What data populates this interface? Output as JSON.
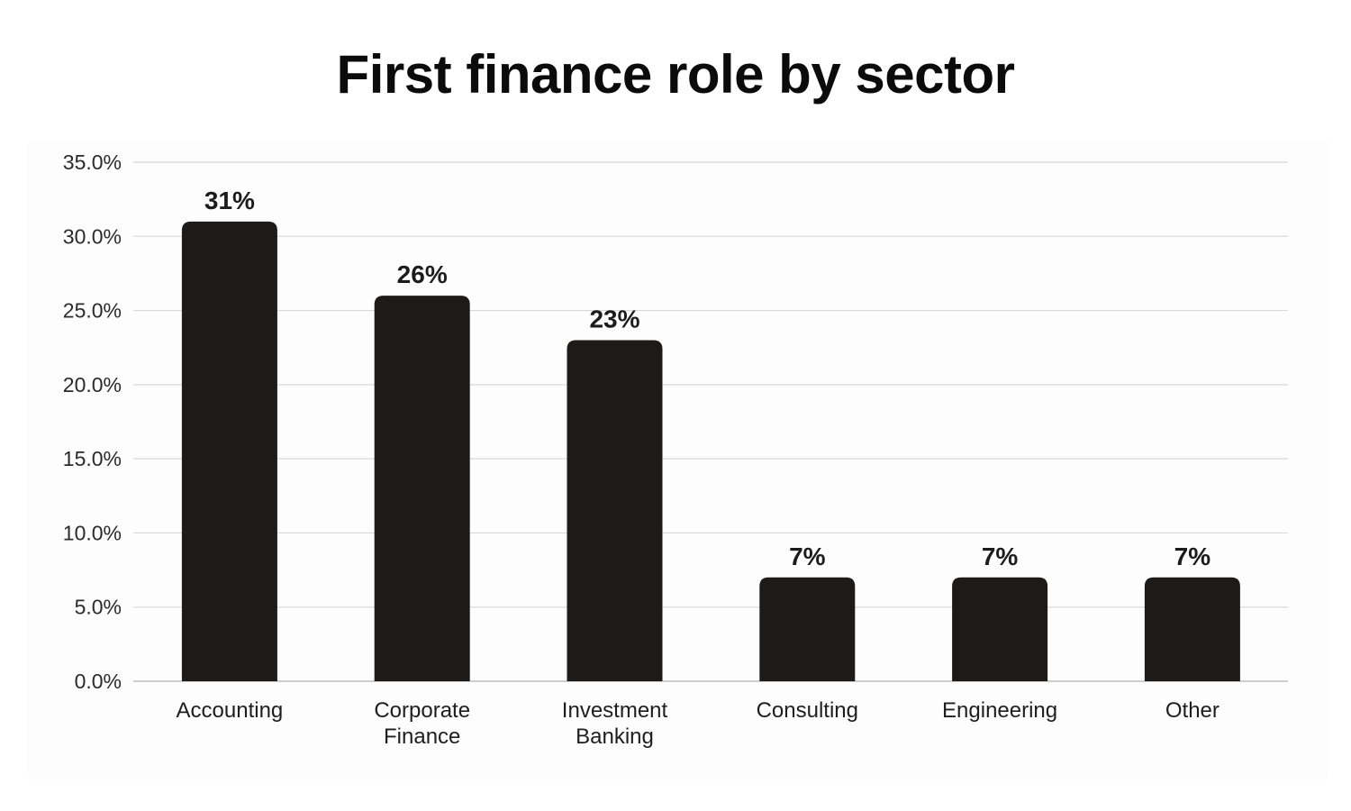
{
  "chart_data": {
    "type": "bar",
    "title": "First finance role by sector",
    "xlabel": "",
    "ylabel": "",
    "categories": [
      [
        "Accounting"
      ],
      [
        "Corporate",
        "Finance"
      ],
      [
        "Investment",
        "Banking"
      ],
      [
        "Consulting"
      ],
      [
        "Engineering"
      ],
      [
        "Other"
      ]
    ],
    "values": [
      31,
      26,
      23,
      7,
      7,
      7
    ],
    "data_labels": [
      "31%",
      "26%",
      "23%",
      "7%",
      "7%",
      "7%"
    ],
    "ylim": [
      0,
      35
    ],
    "yticks": [
      0,
      5,
      10,
      15,
      20,
      25,
      30,
      35
    ],
    "ytick_labels": [
      "0.0%",
      "5.0%",
      "10.0%",
      "15.0%",
      "20.0%",
      "25.0%",
      "30.0%",
      "35.0%"
    ],
    "grid": true,
    "legend": "none",
    "colors": {
      "bar": "#1d1b1a",
      "grid": "#d9d9d9",
      "axis": "#bdbdbd"
    }
  }
}
